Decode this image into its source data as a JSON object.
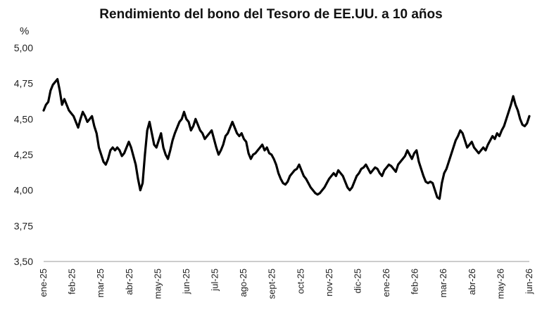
{
  "chart_data": {
    "type": "line",
    "title": "Rendimiento del bono del Tesoro de EE.UU. a 10 años",
    "ylabel": "%",
    "xlabel": "",
    "ylim": [
      3.5,
      5.0
    ],
    "y_ticks": [
      "5,00",
      "4,75",
      "4,50",
      "4,25",
      "4,00",
      "3,75",
      "3,50"
    ],
    "y_tick_values": [
      5.0,
      4.75,
      4.5,
      4.25,
      4.0,
      3.75,
      3.5
    ],
    "x_tick_labels": [
      "ene-25",
      "feb-25",
      "mar-25",
      "abr-25",
      "may-25",
      "jun-25",
      "jul-25",
      "ago-25",
      "sept-25",
      "oct-25",
      "nov-25",
      "dic-25",
      "ene-26",
      "feb-26",
      "mar-26",
      "abr-26",
      "may-26",
      "jun-26"
    ],
    "grid": false,
    "legend": "none",
    "line_color": "#000000",
    "series": [
      {
        "values": [
          4.56,
          4.6,
          4.62,
          4.7,
          4.74,
          4.76,
          4.78,
          4.7,
          4.6,
          4.64,
          4.6,
          4.56,
          4.54,
          4.52,
          4.48,
          4.44,
          4.5,
          4.55,
          4.52,
          4.48,
          4.5,
          4.52,
          4.45,
          4.4,
          4.3,
          4.25,
          4.2,
          4.18,
          4.22,
          4.28,
          4.3,
          4.28,
          4.3,
          4.28,
          4.24,
          4.26,
          4.3,
          4.34,
          4.3,
          4.24,
          4.18,
          4.08,
          4.0,
          4.05,
          4.25,
          4.42,
          4.48,
          4.4,
          4.32,
          4.3,
          4.35,
          4.4,
          4.3,
          4.25,
          4.22,
          4.28,
          4.35,
          4.4,
          4.44,
          4.48,
          4.5,
          4.55,
          4.5,
          4.48,
          4.42,
          4.45,
          4.5,
          4.46,
          4.42,
          4.4,
          4.36,
          4.38,
          4.4,
          4.42,
          4.36,
          4.3,
          4.25,
          4.28,
          4.32,
          4.38,
          4.4,
          4.44,
          4.48,
          4.44,
          4.4,
          4.38,
          4.4,
          4.36,
          4.34,
          4.26,
          4.22,
          4.25,
          4.26,
          4.28,
          4.3,
          4.32,
          4.28,
          4.3,
          4.26,
          4.25,
          4.22,
          4.18,
          4.12,
          4.08,
          4.05,
          4.04,
          4.06,
          4.1,
          4.12,
          4.14,
          4.15,
          4.18,
          4.14,
          4.1,
          4.08,
          4.05,
          4.02,
          4.0,
          3.98,
          3.97,
          3.98,
          4.0,
          4.02,
          4.05,
          4.08,
          4.1,
          4.12,
          4.1,
          4.14,
          4.12,
          4.1,
          4.06,
          4.02,
          4.0,
          4.02,
          4.06,
          4.1,
          4.12,
          4.15,
          4.16,
          4.18,
          4.15,
          4.12,
          4.14,
          4.16,
          4.15,
          4.12,
          4.1,
          4.14,
          4.16,
          4.18,
          4.17,
          4.15,
          4.13,
          4.18,
          4.2,
          4.22,
          4.24,
          4.28,
          4.25,
          4.22,
          4.26,
          4.28,
          4.2,
          4.15,
          4.1,
          4.06,
          4.05,
          4.06,
          4.05,
          4.0,
          3.95,
          3.94,
          4.05,
          4.12,
          4.15,
          4.2,
          4.25,
          4.3,
          4.35,
          4.38,
          4.42,
          4.4,
          4.35,
          4.3,
          4.32,
          4.34,
          4.3,
          4.28,
          4.26,
          4.28,
          4.3,
          4.28,
          4.32,
          4.35,
          4.38,
          4.36,
          4.4,
          4.38,
          4.42,
          4.45,
          4.5,
          4.55,
          4.6,
          4.66,
          4.6,
          4.56,
          4.5,
          4.46,
          4.45,
          4.47,
          4.52
        ]
      }
    ]
  }
}
